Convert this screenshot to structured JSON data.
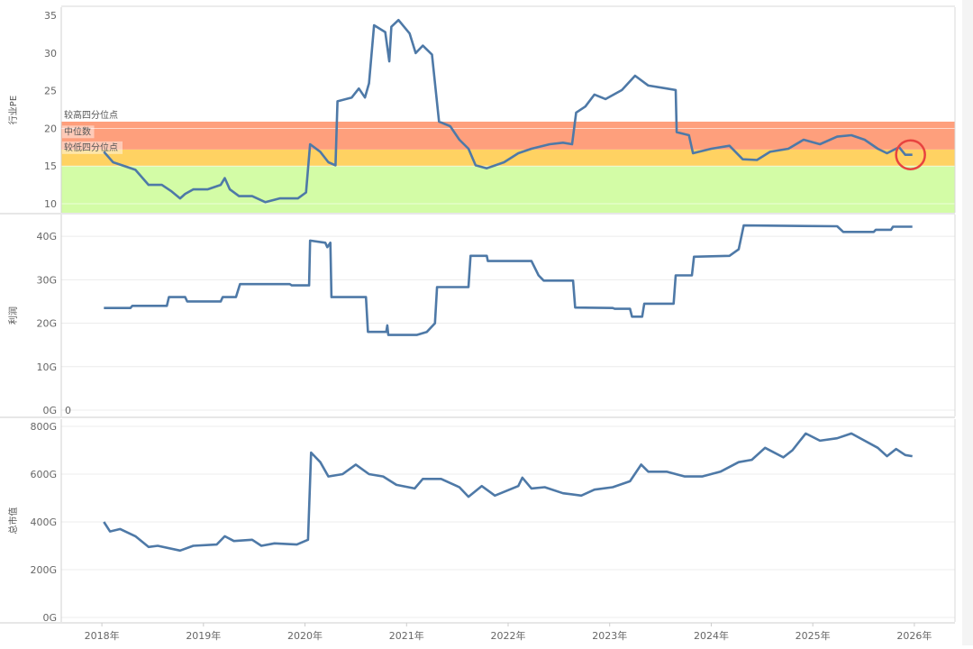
{
  "chart_data": [
    {
      "type": "line",
      "ylabel": "行业PE",
      "ylim": [
        8.8,
        36.1
      ],
      "yticks": [
        10,
        15,
        20,
        25,
        30,
        35
      ],
      "ytick_labels": [
        "10",
        "15",
        "20",
        "25",
        "30",
        "35"
      ],
      "bands": [
        {
          "label": "",
          "from": 8.8,
          "to": 15,
          "color": "#d3fca6"
        },
        {
          "label": "较低四分位点",
          "from": 15,
          "to": 17.2,
          "color": "#ffd262"
        },
        {
          "label": "中位数",
          "from": 17.2,
          "to": 20.9,
          "color": "#fe9f7c"
        }
      ],
      "band_lines": [
        {
          "label": "较高四分位点",
          "value": 20.9
        },
        {
          "label": "中位数",
          "value": 18.7
        },
        {
          "label": "较低四分位点",
          "value": 16.6
        }
      ],
      "annotation": {
        "type": "circle",
        "x": 2025.98,
        "y": 16.5,
        "color": "#e8433f"
      },
      "series": [
        {
          "name": "行业PE",
          "color": "#4e79a7",
          "points": [
            [
              2018.02,
              16.9
            ],
            [
              2018.11,
              15.5
            ],
            [
              2018.2,
              15.1
            ],
            [
              2018.33,
              14.5
            ],
            [
              2018.46,
              12.5
            ],
            [
              2018.59,
              12.5
            ],
            [
              2018.68,
              11.7
            ],
            [
              2018.77,
              10.7
            ],
            [
              2018.82,
              11.3
            ],
            [
              2018.9,
              11.9
            ],
            [
              2019.04,
              11.9
            ],
            [
              2019.17,
              12.5
            ],
            [
              2019.21,
              13.4
            ],
            [
              2019.26,
              11.9
            ],
            [
              2019.35,
              11.0
            ],
            [
              2019.48,
              11.0
            ],
            [
              2019.61,
              10.2
            ],
            [
              2019.75,
              10.7
            ],
            [
              2019.93,
              10.7
            ],
            [
              2020.01,
              11.5
            ],
            [
              2020.05,
              17.9
            ],
            [
              2020.15,
              16.9
            ],
            [
              2020.23,
              15.5
            ],
            [
              2020.3,
              15.1
            ],
            [
              2020.32,
              23.6
            ],
            [
              2020.46,
              24.1
            ],
            [
              2020.53,
              25.3
            ],
            [
              2020.59,
              24.1
            ],
            [
              2020.63,
              26.0
            ],
            [
              2020.68,
              33.7
            ],
            [
              2020.79,
              32.8
            ],
            [
              2020.83,
              28.9
            ],
            [
              2020.85,
              33.5
            ],
            [
              2020.92,
              34.4
            ],
            [
              2021.03,
              32.6
            ],
            [
              2021.09,
              30.0
            ],
            [
              2021.16,
              31.0
            ],
            [
              2021.25,
              29.8
            ],
            [
              2021.32,
              20.9
            ],
            [
              2021.43,
              20.3
            ],
            [
              2021.52,
              18.5
            ],
            [
              2021.61,
              17.3
            ],
            [
              2021.68,
              15.1
            ],
            [
              2021.79,
              14.7
            ],
            [
              2021.96,
              15.5
            ],
            [
              2022.1,
              16.7
            ],
            [
              2022.23,
              17.3
            ],
            [
              2022.41,
              17.9
            ],
            [
              2022.54,
              18.1
            ],
            [
              2022.63,
              17.9
            ],
            [
              2022.67,
              22.1
            ],
            [
              2022.76,
              22.9
            ],
            [
              2022.85,
              24.5
            ],
            [
              2022.96,
              23.9
            ],
            [
              2023.12,
              25.1
            ],
            [
              2023.25,
              27.0
            ],
            [
              2023.38,
              25.7
            ],
            [
              2023.56,
              25.3
            ],
            [
              2023.65,
              25.1
            ],
            [
              2023.66,
              19.5
            ],
            [
              2023.78,
              19.1
            ],
            [
              2023.82,
              16.7
            ],
            [
              2024.0,
              17.3
            ],
            [
              2024.18,
              17.7
            ],
            [
              2024.31,
              15.9
            ],
            [
              2024.45,
              15.8
            ],
            [
              2024.58,
              16.9
            ],
            [
              2024.76,
              17.3
            ],
            [
              2024.91,
              18.5
            ],
            [
              2025.07,
              17.9
            ],
            [
              2025.24,
              18.9
            ],
            [
              2025.38,
              19.1
            ],
            [
              2025.51,
              18.5
            ],
            [
              2025.64,
              17.3
            ],
            [
              2025.73,
              16.7
            ],
            [
              2025.85,
              17.5
            ],
            [
              2025.91,
              16.5
            ],
            [
              2025.98,
              16.5
            ]
          ]
        }
      ]
    },
    {
      "type": "line",
      "ylabel": "利润",
      "ylim": [
        -1.45,
        45
      ],
      "yticks": [
        0,
        10,
        20,
        30,
        40
      ],
      "ytick_labels": [
        "0G",
        "10G",
        "20G",
        "30G",
        "40G"
      ],
      "annotation_text": "0",
      "series": [
        {
          "name": "利润",
          "color": "#4e79a7",
          "points": [
            [
              2018.02,
              23.5
            ],
            [
              2018.28,
              23.5
            ],
            [
              2018.3,
              24
            ],
            [
              2018.64,
              24
            ],
            [
              2018.66,
              26
            ],
            [
              2018.82,
              26
            ],
            [
              2018.84,
              25
            ],
            [
              2019.17,
              25
            ],
            [
              2019.19,
              26
            ],
            [
              2019.32,
              26
            ],
            [
              2019.36,
              29
            ],
            [
              2019.85,
              29
            ],
            [
              2019.87,
              28.7
            ],
            [
              2020.04,
              28.7
            ],
            [
              2020.05,
              39
            ],
            [
              2020.2,
              38.5
            ],
            [
              2020.22,
              37.5
            ],
            [
              2020.25,
              38.5
            ],
            [
              2020.26,
              26
            ],
            [
              2020.6,
              26
            ],
            [
              2020.62,
              18
            ],
            [
              2020.8,
              18
            ],
            [
              2020.81,
              19.5
            ],
            [
              2020.82,
              17.3
            ],
            [
              2021.1,
              17.3
            ],
            [
              2021.2,
              18
            ],
            [
              2021.28,
              20
            ],
            [
              2021.3,
              28.3
            ],
            [
              2021.61,
              28.3
            ],
            [
              2021.63,
              35.5
            ],
            [
              2021.79,
              35.5
            ],
            [
              2021.8,
              34.3
            ],
            [
              2022.23,
              34.3
            ],
            [
              2022.3,
              31
            ],
            [
              2022.35,
              29.8
            ],
            [
              2022.64,
              29.8
            ],
            [
              2022.66,
              23.6
            ],
            [
              2023.03,
              23.5
            ],
            [
              2023.05,
              23.3
            ],
            [
              2023.2,
              23.3
            ],
            [
              2023.22,
              21.5
            ],
            [
              2023.32,
              21.5
            ],
            [
              2023.34,
              24.5
            ],
            [
              2023.63,
              24.5
            ],
            [
              2023.65,
              31
            ],
            [
              2023.81,
              31
            ],
            [
              2023.83,
              35.3
            ],
            [
              2024.18,
              35.5
            ],
            [
              2024.27,
              37
            ],
            [
              2024.32,
              42.5
            ],
            [
              2025.24,
              42.3
            ],
            [
              2025.3,
              41
            ],
            [
              2025.6,
              41
            ],
            [
              2025.62,
              41.5
            ],
            [
              2025.77,
              41.5
            ],
            [
              2025.79,
              42.2
            ],
            [
              2025.98,
              42.2
            ]
          ]
        }
      ]
    },
    {
      "type": "line",
      "ylabel": "总市值",
      "ylim": [
        -19,
        830
      ],
      "yticks": [
        0,
        200,
        400,
        600,
        800
      ],
      "ytick_labels": [
        "0G",
        "200G",
        "400G",
        "600G",
        "800G"
      ],
      "series": [
        {
          "name": "总市值",
          "color": "#4e79a7",
          "points": [
            [
              2018.02,
              400
            ],
            [
              2018.08,
              360
            ],
            [
              2018.18,
              370
            ],
            [
              2018.33,
              340
            ],
            [
              2018.46,
              295
            ],
            [
              2018.55,
              300
            ],
            [
              2018.77,
              280
            ],
            [
              2018.9,
              300
            ],
            [
              2019.13,
              305
            ],
            [
              2019.21,
              340
            ],
            [
              2019.3,
              320
            ],
            [
              2019.48,
              325
            ],
            [
              2019.57,
              300
            ],
            [
              2019.7,
              310
            ],
            [
              2019.92,
              305
            ],
            [
              2020.03,
              325
            ],
            [
              2020.06,
              690
            ],
            [
              2020.15,
              650
            ],
            [
              2020.23,
              590
            ],
            [
              2020.37,
              600
            ],
            [
              2020.5,
              640
            ],
            [
              2020.63,
              600
            ],
            [
              2020.77,
              590
            ],
            [
              2020.9,
              555
            ],
            [
              2021.08,
              540
            ],
            [
              2021.16,
              580
            ],
            [
              2021.34,
              580
            ],
            [
              2021.52,
              545
            ],
            [
              2021.61,
              505
            ],
            [
              2021.74,
              550
            ],
            [
              2021.87,
              510
            ],
            [
              2022.1,
              550
            ],
            [
              2022.14,
              585
            ],
            [
              2022.23,
              540
            ],
            [
              2022.36,
              545
            ],
            [
              2022.54,
              520
            ],
            [
              2022.72,
              510
            ],
            [
              2022.85,
              535
            ],
            [
              2023.03,
              545
            ],
            [
              2023.2,
              570
            ],
            [
              2023.31,
              640
            ],
            [
              2023.38,
              610
            ],
            [
              2023.56,
              610
            ],
            [
              2023.74,
              590
            ],
            [
              2023.91,
              590
            ],
            [
              2024.09,
              610
            ],
            [
              2024.27,
              650
            ],
            [
              2024.4,
              660
            ],
            [
              2024.53,
              710
            ],
            [
              2024.71,
              670
            ],
            [
              2024.8,
              700
            ],
            [
              2024.93,
              770
            ],
            [
              2025.07,
              740
            ],
            [
              2025.24,
              750
            ],
            [
              2025.38,
              770
            ],
            [
              2025.51,
              740
            ],
            [
              2025.64,
              710
            ],
            [
              2025.73,
              675
            ],
            [
              2025.82,
              705
            ],
            [
              2025.91,
              680
            ],
            [
              2025.98,
              675
            ]
          ]
        }
      ]
    }
  ],
  "x_axis": {
    "xlim": [
      2017.6,
      2026.4
    ],
    "ticks": [
      2018,
      2019,
      2020,
      2021,
      2022,
      2023,
      2024,
      2025,
      2026
    ],
    "tick_labels": [
      "2018年",
      "2019年",
      "2020年",
      "2021年",
      "2022年",
      "2023年",
      "2024年",
      "2025年",
      "2026年"
    ]
  }
}
